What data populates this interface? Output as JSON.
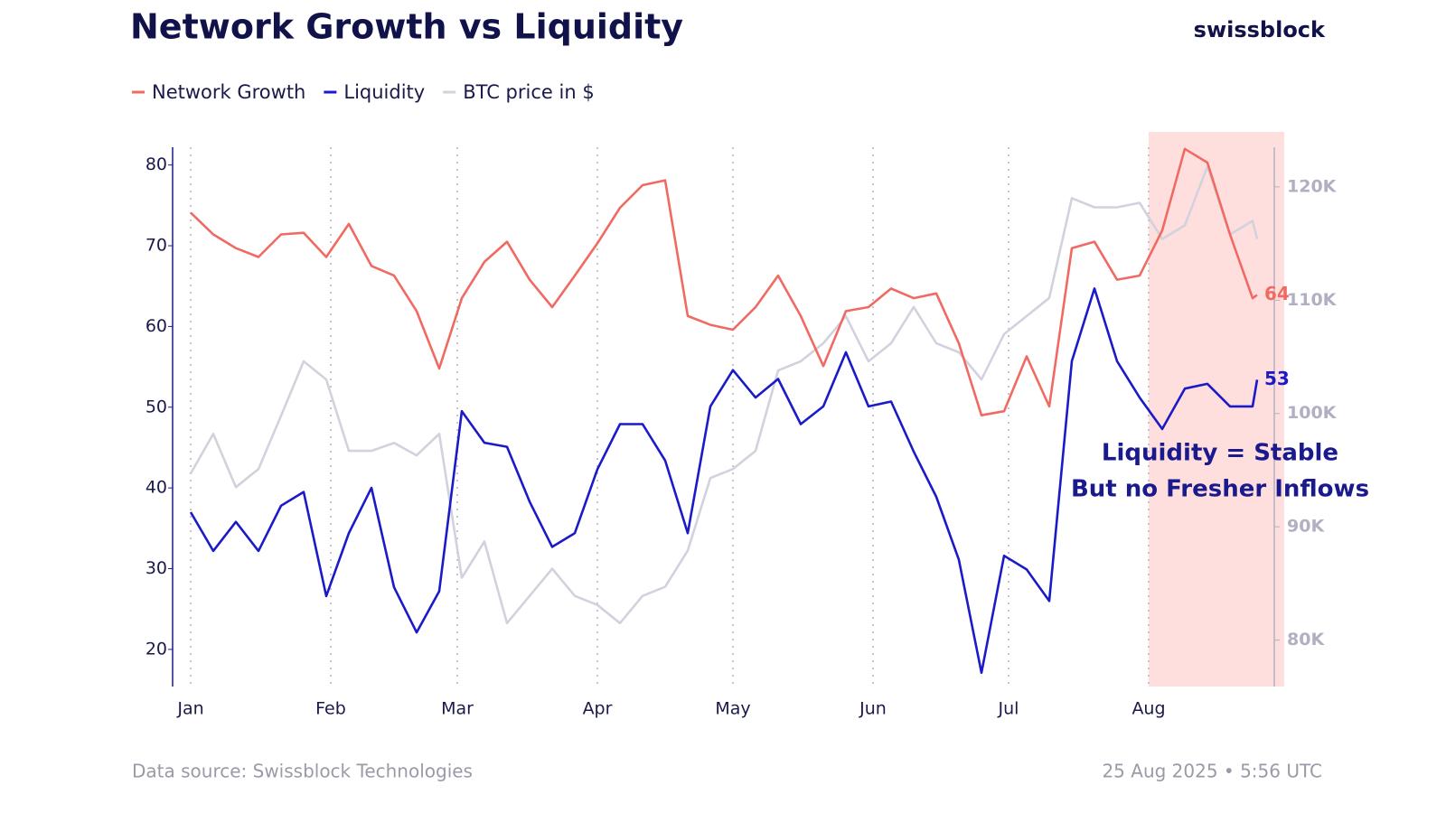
{
  "chart_data": {
    "type": "line",
    "title": "Network Growth vs Liquidity",
    "brand": "swissblock",
    "source": "Data source: Swissblock Technologies",
    "timestamp": "25 Aug 2025 • 5:56 UTC",
    "annotation": [
      "Liquidity = Stable",
      "But no Fresher Inflows"
    ],
    "x": [
      0,
      5,
      10,
      15,
      20,
      25,
      30,
      35,
      40,
      45,
      50,
      55,
      60,
      65,
      70,
      75,
      80,
      85,
      90,
      95,
      100,
      105,
      110,
      115,
      120,
      125,
      130,
      135,
      140,
      145,
      150,
      155,
      160,
      165,
      170,
      175,
      180,
      185,
      190,
      195,
      200,
      205,
      210,
      215,
      220,
      225,
      230,
      235,
      236
    ],
    "xlim": [
      -4,
      242
    ],
    "xticks": [
      {
        "value": 0,
        "label": "Jan"
      },
      {
        "value": 31,
        "label": "Feb"
      },
      {
        "value": 59,
        "label": "Mar"
      },
      {
        "value": 90,
        "label": "Apr"
      },
      {
        "value": 120,
        "label": "May"
      },
      {
        "value": 151,
        "label": "Jun"
      },
      {
        "value": 181,
        "label": "Jul"
      },
      {
        "value": 212,
        "label": "Aug"
      }
    ],
    "ylim": [
      15.4,
      82.2
    ],
    "yticks": [
      20,
      30,
      40,
      50,
      60,
      70,
      80
    ],
    "y2lim": [
      75900,
      123500
    ],
    "y2ticks": [
      {
        "value": 80000,
        "label": "80K"
      },
      {
        "value": 90000,
        "label": "90K"
      },
      {
        "value": 100000,
        "label": "100K"
      },
      {
        "value": 110000,
        "label": "110K"
      },
      {
        "value": 120000,
        "label": "120K"
      }
    ],
    "grid": true,
    "highlight": {
      "start": 212,
      "end": 242,
      "color": "#ffdede"
    },
    "series": [
      {
        "name": "Network Growth",
        "color": "#f06a63",
        "end_label": "64",
        "values": [
          74.1,
          71.4,
          69.7,
          68.6,
          71.4,
          71.6,
          68.6,
          72.7,
          67.5,
          66.3,
          61.9,
          54.8,
          63.5,
          68,
          70.5,
          65.8,
          62.4,
          66.3,
          70.3,
          74.7,
          77.5,
          78.1,
          61.3,
          60.2,
          59.6,
          62.4,
          66.3,
          61.3,
          55.1,
          61.9,
          62.4,
          64.7,
          63.5,
          64.1,
          57.9,
          49,
          49.5,
          56.3,
          50.1,
          69.7,
          70.5,
          65.8,
          66.3,
          71.9,
          82,
          80.3,
          71.4,
          63.5,
          63.9
        ]
      },
      {
        "name": "Liquidity",
        "color": "#1a1ac8",
        "end_label": "53",
        "values": [
          37,
          32.2,
          35.8,
          32.2,
          37.8,
          39.5,
          26.6,
          34.4,
          40,
          27.7,
          22.1,
          27.2,
          49.5,
          45.6,
          45.1,
          38.3,
          32.7,
          34.4,
          42.3,
          47.9,
          47.9,
          43.4,
          34.4,
          50.1,
          54.6,
          51.2,
          53.5,
          47.9,
          50.1,
          56.8,
          50.1,
          50.7,
          44.5,
          38.9,
          31.1,
          17.1,
          31.6,
          29.9,
          26,
          55.7,
          64.7,
          55.7,
          51.2,
          47.3,
          52.3,
          52.9,
          50.1,
          50.1,
          53.4
        ]
      },
      {
        "name": "BTC price in $",
        "color": "#d2d2de",
        "axis": "y2",
        "values": [
          94700,
          98200,
          93500,
          95100,
          99800,
          104600,
          103000,
          96700,
          96700,
          97400,
          96300,
          98200,
          85500,
          88700,
          81500,
          83900,
          86300,
          83900,
          83100,
          81500,
          83900,
          84700,
          87900,
          94300,
          95100,
          96700,
          103800,
          104600,
          106200,
          108600,
          104600,
          106200,
          109400,
          106200,
          105400,
          103000,
          107000,
          108600,
          110200,
          119000,
          118200,
          118200,
          118600,
          115400,
          116600,
          121800,
          115800,
          117000,
          115400
        ]
      }
    ]
  }
}
